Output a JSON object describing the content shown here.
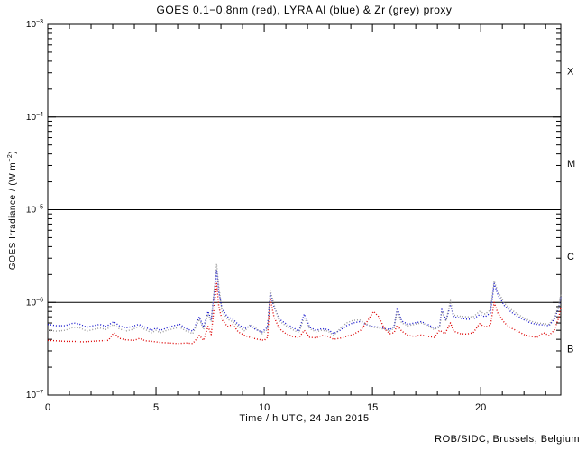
{
  "chart_data": {
    "type": "line",
    "title": "GOES 0.1−0.8nm (red), LYRA Al (blue) & Zr (grey) proxy",
    "xlabel": "Time / h UTC, 24 Jan 2015",
    "ylabel": {
      "base": "GOES Irradiance / (W m",
      "sup": "−2",
      "close": ")"
    },
    "credit": "ROB/SIDC, Brussels, Belgium",
    "x_range": [
      0,
      23.7
    ],
    "y_range": [
      1e-07,
      0.001
    ],
    "grid": "off",
    "legend": "in-title",
    "axis_color": "#000000",
    "x_major_ticks": [
      {
        "label": "0",
        "value": 0
      },
      {
        "label": "5",
        "value": 5
      },
      {
        "label": "10",
        "value": 10
      },
      {
        "label": "15",
        "value": 15
      },
      {
        "label": "20",
        "value": 20
      }
    ],
    "x_minor_step": 1,
    "y_ticks": [
      {
        "base": "10",
        "exponent": "−3",
        "value": 0.001
      },
      {
        "base": "10",
        "exponent": "−4",
        "value": 0.0001
      },
      {
        "base": "10",
        "exponent": "−5",
        "value": 1e-05
      },
      {
        "base": "10",
        "exponent": "−6",
        "value": 1e-06
      },
      {
        "base": "10",
        "exponent": "−7",
        "value": 1e-07
      }
    ],
    "hlines": [
      0.0001,
      1e-05,
      1e-06
    ],
    "flare_class_labels": [
      {
        "label": "X",
        "value": 0.000316
      },
      {
        "label": "M",
        "value": 3.16e-05
      },
      {
        "label": "C",
        "value": 3.16e-06
      },
      {
        "label": "B",
        "value": 3.16e-07
      }
    ],
    "series": [
      {
        "name": "LYRA Al proxy",
        "color": "#1414cc",
        "style": "dotted",
        "points": [
          [
            0.0,
            5.8e-07
          ],
          [
            0.4,
            5.6e-07
          ],
          [
            0.8,
            5.6e-07
          ],
          [
            1.2,
            6e-07
          ],
          [
            1.5,
            5.8e-07
          ],
          [
            1.8,
            5.4e-07
          ],
          [
            2.1,
            5.6e-07
          ],
          [
            2.4,
            5.8e-07
          ],
          [
            2.7,
            5.5e-07
          ],
          [
            3.05,
            6.2e-07
          ],
          [
            3.3,
            5.6e-07
          ],
          [
            3.6,
            5.3e-07
          ],
          [
            3.9,
            5.5e-07
          ],
          [
            4.2,
            5.8e-07
          ],
          [
            4.5,
            5.4e-07
          ],
          [
            4.8,
            5e-07
          ],
          [
            5.0,
            5.3e-07
          ],
          [
            5.2,
            5e-07
          ],
          [
            5.5,
            5.3e-07
          ],
          [
            5.8,
            5.6e-07
          ],
          [
            6.1,
            5.8e-07
          ],
          [
            6.4,
            5.2e-07
          ],
          [
            6.7,
            4.9e-07
          ],
          [
            7.0,
            7e-07
          ],
          [
            7.2,
            5.4e-07
          ],
          [
            7.4,
            8e-07
          ],
          [
            7.55,
            6.5e-07
          ],
          [
            7.8,
            2.2e-06
          ],
          [
            7.9,
            1.3e-06
          ],
          [
            8.05,
            8.5e-07
          ],
          [
            8.3,
            7e-07
          ],
          [
            8.55,
            6.6e-07
          ],
          [
            8.8,
            5.8e-07
          ],
          [
            9.1,
            5.2e-07
          ],
          [
            9.35,
            5.6e-07
          ],
          [
            9.6,
            5.1e-07
          ],
          [
            9.9,
            4.8e-07
          ],
          [
            10.15,
            5.4e-07
          ],
          [
            10.28,
            1.25e-06
          ],
          [
            10.45,
            9e-07
          ],
          [
            10.7,
            6.6e-07
          ],
          [
            11.0,
            5.9e-07
          ],
          [
            11.3,
            5.4e-07
          ],
          [
            11.6,
            4.9e-07
          ],
          [
            11.85,
            7.5e-07
          ],
          [
            12.1,
            5.4e-07
          ],
          [
            12.4,
            5e-07
          ],
          [
            12.65,
            5.2e-07
          ],
          [
            12.95,
            5.1e-07
          ],
          [
            13.2,
            4.6e-07
          ],
          [
            13.5,
            5e-07
          ],
          [
            13.8,
            5.6e-07
          ],
          [
            14.1,
            6e-07
          ],
          [
            14.4,
            6.2e-07
          ],
          [
            14.7,
            5.8e-07
          ],
          [
            15.0,
            5.5e-07
          ],
          [
            15.3,
            5.4e-07
          ],
          [
            15.6,
            5.2e-07
          ],
          [
            15.8,
            5.1e-07
          ],
          [
            16.0,
            5.5e-07
          ],
          [
            16.15,
            8.7e-07
          ],
          [
            16.35,
            6.3e-07
          ],
          [
            16.65,
            5.8e-07
          ],
          [
            16.95,
            6e-07
          ],
          [
            17.25,
            6.2e-07
          ],
          [
            17.55,
            5.8e-07
          ],
          [
            17.85,
            5.3e-07
          ],
          [
            18.1,
            5.5e-07
          ],
          [
            18.2,
            8.4e-07
          ],
          [
            18.4,
            6.4e-07
          ],
          [
            18.6,
            9.5e-07
          ],
          [
            18.75,
            7e-07
          ],
          [
            19.05,
            6.8e-07
          ],
          [
            19.35,
            6.6e-07
          ],
          [
            19.65,
            6.6e-07
          ],
          [
            19.95,
            7.4e-07
          ],
          [
            20.2,
            7e-07
          ],
          [
            20.45,
            7.7e-07
          ],
          [
            20.62,
            1.6e-06
          ],
          [
            20.8,
            1.2e-06
          ],
          [
            21.1,
            9.2e-07
          ],
          [
            21.4,
            7.9e-07
          ],
          [
            21.7,
            7.1e-07
          ],
          [
            22.0,
            6.5e-07
          ],
          [
            22.3,
            6e-07
          ],
          [
            22.6,
            5.8e-07
          ],
          [
            22.9,
            5.7e-07
          ],
          [
            23.15,
            5.6e-07
          ],
          [
            23.4,
            6.6e-07
          ],
          [
            23.6,
            8.8e-07
          ],
          [
            23.7,
            1.15e-06
          ]
        ]
      },
      {
        "name": "LYRA Zr proxy",
        "color": "#9a9a9a",
        "style": "dotted",
        "points": [
          [
            0.0,
            5e-07
          ],
          [
            0.4,
            4.9e-07
          ],
          [
            0.8,
            5e-07
          ],
          [
            1.2,
            5.4e-07
          ],
          [
            1.5,
            5.3e-07
          ],
          [
            1.8,
            4.9e-07
          ],
          [
            2.1,
            5.1e-07
          ],
          [
            2.4,
            5.3e-07
          ],
          [
            2.7,
            5.1e-07
          ],
          [
            3.05,
            5.8e-07
          ],
          [
            3.3,
            5.2e-07
          ],
          [
            3.6,
            4.9e-07
          ],
          [
            3.9,
            5.1e-07
          ],
          [
            4.2,
            5.5e-07
          ],
          [
            4.5,
            5.1e-07
          ],
          [
            4.8,
            4.7e-07
          ],
          [
            5.0,
            5e-07
          ],
          [
            5.2,
            4.7e-07
          ],
          [
            5.5,
            5e-07
          ],
          [
            5.8,
            5.2e-07
          ],
          [
            6.1,
            5.4e-07
          ],
          [
            6.4,
            4.9e-07
          ],
          [
            6.7,
            4.6e-07
          ],
          [
            7.0,
            6.6e-07
          ],
          [
            7.2,
            5.1e-07
          ],
          [
            7.4,
            7.5e-07
          ],
          [
            7.55,
            6.2e-07
          ],
          [
            7.8,
            2.6e-06
          ],
          [
            7.9,
            1.5e-06
          ],
          [
            8.05,
            8e-07
          ],
          [
            8.3,
            6.6e-07
          ],
          [
            8.55,
            6.2e-07
          ],
          [
            8.8,
            5.5e-07
          ],
          [
            9.1,
            4.9e-07
          ],
          [
            9.35,
            5.8e-07
          ],
          [
            9.6,
            5.3e-07
          ],
          [
            9.9,
            4.6e-07
          ],
          [
            10.15,
            5.1e-07
          ],
          [
            10.28,
            1.35e-06
          ],
          [
            10.45,
            9.5e-07
          ],
          [
            10.7,
            6.3e-07
          ],
          [
            11.0,
            5.6e-07
          ],
          [
            11.3,
            5.1e-07
          ],
          [
            11.6,
            4.7e-07
          ],
          [
            11.85,
            7e-07
          ],
          [
            12.1,
            5.2e-07
          ],
          [
            12.4,
            4.8e-07
          ],
          [
            12.65,
            5e-07
          ],
          [
            12.95,
            4.9e-07
          ],
          [
            13.2,
            4.4e-07
          ],
          [
            13.5,
            5.2e-07
          ],
          [
            13.8,
            6e-07
          ],
          [
            14.1,
            6.4e-07
          ],
          [
            14.4,
            6.5e-07
          ],
          [
            14.7,
            5.9e-07
          ],
          [
            15.0,
            5.4e-07
          ],
          [
            15.3,
            5.3e-07
          ],
          [
            15.6,
            5.1e-07
          ],
          [
            15.8,
            4.9e-07
          ],
          [
            16.0,
            5.3e-07
          ],
          [
            16.15,
            8.2e-07
          ],
          [
            16.35,
            6e-07
          ],
          [
            16.65,
            5.6e-07
          ],
          [
            16.95,
            5.8e-07
          ],
          [
            17.25,
            6e-07
          ],
          [
            17.55,
            5.6e-07
          ],
          [
            17.85,
            5.1e-07
          ],
          [
            18.1,
            5.4e-07
          ],
          [
            18.2,
            8e-07
          ],
          [
            18.4,
            6.3e-07
          ],
          [
            18.6,
            1.05e-06
          ],
          [
            18.75,
            7.3e-07
          ],
          [
            19.05,
            7.1e-07
          ],
          [
            19.35,
            7e-07
          ],
          [
            19.65,
            7e-07
          ],
          [
            19.95,
            8e-07
          ],
          [
            20.2,
            7.5e-07
          ],
          [
            20.45,
            8.3e-07
          ],
          [
            20.62,
            1.7e-06
          ],
          [
            20.8,
            1.3e-06
          ],
          [
            21.1,
            9.8e-07
          ],
          [
            21.4,
            8.4e-07
          ],
          [
            21.7,
            7.5e-07
          ],
          [
            22.0,
            6.8e-07
          ],
          [
            22.3,
            6.3e-07
          ],
          [
            22.6,
            6e-07
          ],
          [
            22.9,
            5.9e-07
          ],
          [
            23.15,
            5.8e-07
          ],
          [
            23.4,
            6.9e-07
          ],
          [
            23.6,
            9.2e-07
          ],
          [
            23.7,
            1.25e-06
          ]
        ]
      },
      {
        "name": "GOES 0.1-0.8nm",
        "color": "#dd0000",
        "style": "dotted",
        "points": [
          [
            0.0,
            3.9e-07
          ],
          [
            0.4,
            3.85e-07
          ],
          [
            0.8,
            3.8e-07
          ],
          [
            1.2,
            3.8e-07
          ],
          [
            1.6,
            3.75e-07
          ],
          [
            2.0,
            3.8e-07
          ],
          [
            2.4,
            3.85e-07
          ],
          [
            2.8,
            3.9e-07
          ],
          [
            3.05,
            4.7e-07
          ],
          [
            3.3,
            4.1e-07
          ],
          [
            3.6,
            3.95e-07
          ],
          [
            4.0,
            3.9e-07
          ],
          [
            4.25,
            4.1e-07
          ],
          [
            4.5,
            3.85e-07
          ],
          [
            4.8,
            3.8e-07
          ],
          [
            5.2,
            3.7e-07
          ],
          [
            5.6,
            3.65e-07
          ],
          [
            6.0,
            3.6e-07
          ],
          [
            6.4,
            3.65e-07
          ],
          [
            6.7,
            3.6e-07
          ],
          [
            7.0,
            4.4e-07
          ],
          [
            7.2,
            3.9e-07
          ],
          [
            7.4,
            5.5e-07
          ],
          [
            7.55,
            4.5e-07
          ],
          [
            7.8,
            1.6e-06
          ],
          [
            7.9,
            9e-07
          ],
          [
            8.05,
            6.5e-07
          ],
          [
            8.3,
            5.5e-07
          ],
          [
            8.55,
            5.8e-07
          ],
          [
            8.8,
            4.8e-07
          ],
          [
            9.1,
            4.4e-07
          ],
          [
            9.4,
            4.15e-07
          ],
          [
            9.7,
            4e-07
          ],
          [
            10.0,
            3.9e-07
          ],
          [
            10.15,
            4.2e-07
          ],
          [
            10.28,
            1.1e-06
          ],
          [
            10.45,
            7e-07
          ],
          [
            10.7,
            5.2e-07
          ],
          [
            11.0,
            4.6e-07
          ],
          [
            11.3,
            4.3e-07
          ],
          [
            11.6,
            4.15e-07
          ],
          [
            11.85,
            5e-07
          ],
          [
            12.1,
            4.2e-07
          ],
          [
            12.4,
            4.15e-07
          ],
          [
            12.65,
            4.4e-07
          ],
          [
            12.95,
            4.3e-07
          ],
          [
            13.2,
            4e-07
          ],
          [
            13.5,
            4.1e-07
          ],
          [
            13.8,
            4.3e-07
          ],
          [
            14.1,
            4.5e-07
          ],
          [
            14.45,
            5e-07
          ],
          [
            14.75,
            6.2e-07
          ],
          [
            15.05,
            8e-07
          ],
          [
            15.3,
            7e-07
          ],
          [
            15.55,
            5.2e-07
          ],
          [
            15.8,
            4.6e-07
          ],
          [
            16.0,
            4.7e-07
          ],
          [
            16.15,
            5.7e-07
          ],
          [
            16.35,
            4.9e-07
          ],
          [
            16.65,
            4.4e-07
          ],
          [
            16.95,
            4.3e-07
          ],
          [
            17.25,
            4.45e-07
          ],
          [
            17.55,
            4.3e-07
          ],
          [
            17.85,
            4.2e-07
          ],
          [
            18.1,
            5e-07
          ],
          [
            18.35,
            4.6e-07
          ],
          [
            18.6,
            6e-07
          ],
          [
            18.75,
            4.9e-07
          ],
          [
            19.05,
            4.6e-07
          ],
          [
            19.35,
            4.55e-07
          ],
          [
            19.65,
            4.7e-07
          ],
          [
            19.95,
            5.9e-07
          ],
          [
            20.2,
            5.4e-07
          ],
          [
            20.45,
            5.7e-07
          ],
          [
            20.62,
            1e-06
          ],
          [
            20.8,
            7.6e-07
          ],
          [
            21.1,
            6e-07
          ],
          [
            21.4,
            5.3e-07
          ],
          [
            21.7,
            4.9e-07
          ],
          [
            22.0,
            4.5e-07
          ],
          [
            22.3,
            4.3e-07
          ],
          [
            22.6,
            4.2e-07
          ],
          [
            22.9,
            4.7e-07
          ],
          [
            23.15,
            4.4e-07
          ],
          [
            23.4,
            5e-07
          ],
          [
            23.6,
            6.8e-07
          ],
          [
            23.7,
            8.8e-07
          ]
        ]
      }
    ]
  }
}
